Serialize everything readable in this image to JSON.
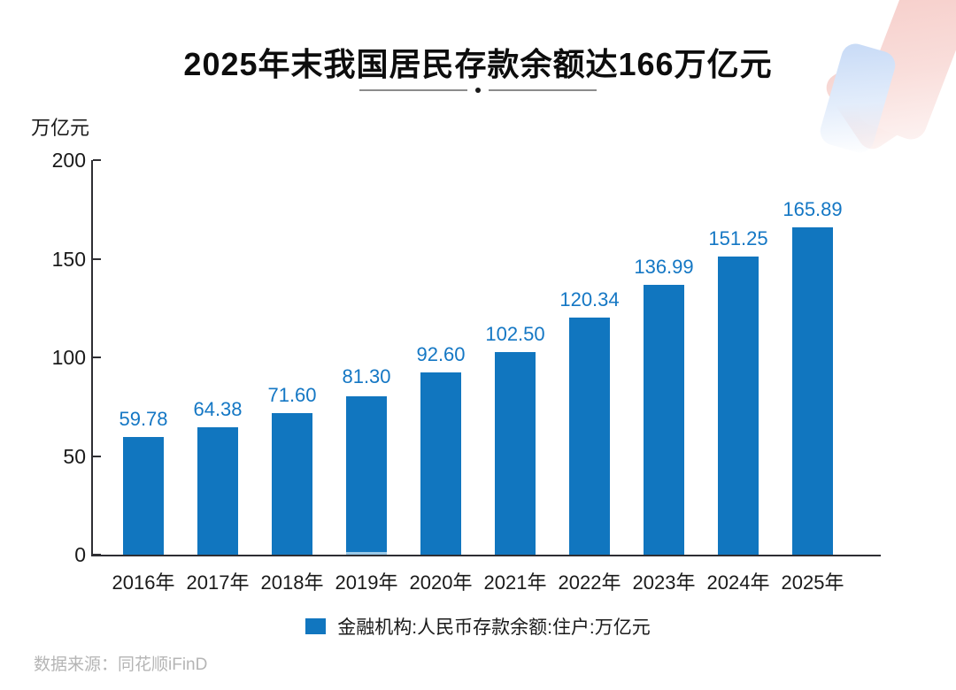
{
  "page": {
    "title": "2025年末我国居民存款余额达166万亿元",
    "source_note": "数据来源：同花顺iFinD"
  },
  "y_axis": {
    "unit_label": "万亿元"
  },
  "legend": {
    "label": "金融机构:人民币存款余额:住户:万亿元"
  },
  "chart_data": {
    "type": "bar",
    "title": "2025年末我国居民存款余额达166万亿元",
    "categories": [
      "2016年",
      "2017年",
      "2018年",
      "2019年",
      "2020年",
      "2021年",
      "2022年",
      "2023年",
      "2024年",
      "2025年"
    ],
    "values": [
      59.78,
      64.38,
      71.6,
      81.3,
      92.6,
      102.5,
      120.34,
      136.99,
      151.25,
      165.89
    ],
    "value_labels": [
      "59.78",
      "64.38",
      "71.60",
      "81.30",
      "92.60",
      "102.50",
      "120.34",
      "136.99",
      "151.25",
      "165.89"
    ],
    "xlabel": "",
    "ylabel": "万亿元",
    "ylim": [
      0,
      200
    ],
    "y_ticks": [
      0,
      50,
      100,
      150,
      200
    ],
    "grid": false,
    "legend_entries": [
      "金融机构:人民币存款余额:住户:万亿元"
    ],
    "legend_position": "bottom",
    "bar_color": "#1176bf",
    "value_label_color": "#1477c4",
    "axis_color": "#2e2e33"
  },
  "colors": {
    "bar": "#1176bf",
    "value_label": "#1477c4",
    "axis": "#2e2e33",
    "text": "#1a1a1a",
    "title_text": "#0d0d0d",
    "source_text": "#b5b5b5",
    "deco_blue": "#c7daf6",
    "deco_pink": "#f6cdc9"
  }
}
